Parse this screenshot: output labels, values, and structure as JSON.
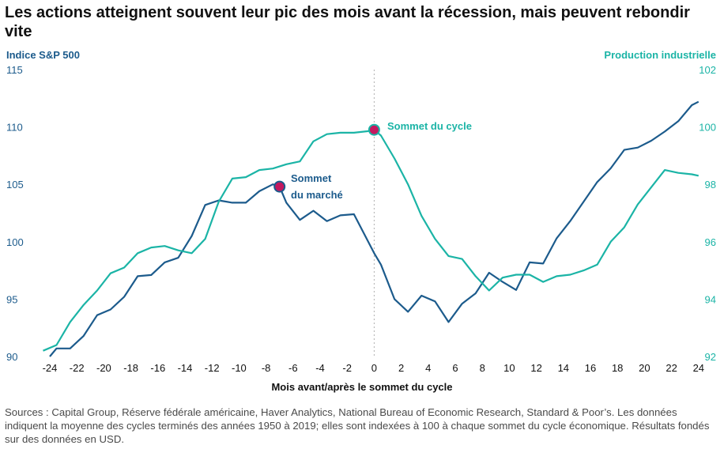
{
  "title": "Les actions atteignent souvent leur pic des mois avant la récession, mais peuvent rebondir vite",
  "footnote": "Sources : Capital Group, Réserve fédérale américaine, Haver Analytics, National Bureau of Economic Research, Standard & Poor’s. Les données indiquent la moyenne des cycles terminés des années 1950 à 2019; elles sont indexées à 100 à chaque sommet du cycle économique. Résultats fondés sur des données en USD.",
  "chart_data": {
    "type": "line",
    "xlabel": "Mois avant/après le sommet du cycle",
    "ylabel_left": "Indice S&P 500",
    "ylabel_right": "Production industrielle",
    "xlim": [
      -24,
      24
    ],
    "ylim_left": [
      90,
      115
    ],
    "ylim_right": [
      92,
      102
    ],
    "x_ticks": [
      -24,
      -22,
      -20,
      -18,
      -16,
      -14,
      -12,
      -10,
      -8,
      -6,
      -4,
      -2,
      0,
      2,
      4,
      6,
      8,
      10,
      12,
      14,
      16,
      18,
      20,
      22,
      24
    ],
    "y_ticks_left": [
      90,
      95,
      100,
      105,
      110,
      115
    ],
    "y_ticks_right": [
      92,
      94,
      96,
      98,
      100,
      102
    ],
    "colors": {
      "sp500": "#1c5b8c",
      "production": "#1bb4a6",
      "marker": "#c4195f",
      "vline": "#b0b0b0"
    },
    "series": [
      {
        "name": "Indice S&P 500",
        "axis": "left",
        "x": [
          -24,
          -23.5,
          -22.5,
          -21.5,
          -20.5,
          -19.5,
          -18.5,
          -17.5,
          -16.5,
          -15.5,
          -14.5,
          -13.5,
          -12.5,
          -11.5,
          -10.5,
          -9.5,
          -8.5,
          -7.5,
          -7,
          -6.5,
          -5.5,
          -4.5,
          -3.5,
          -2.5,
          -1.5,
          0,
          0.5,
          1.5,
          2.5,
          3.5,
          4.5,
          5.5,
          6.5,
          7.5,
          8.5,
          9.5,
          10.5,
          11.5,
          12.5,
          13.5,
          14.5,
          15.5,
          16.5,
          17.5,
          18.5,
          19.5,
          20.5,
          21.5,
          22.5,
          23.5,
          24
        ],
        "values": [
          90.0,
          90.7,
          90.7,
          91.8,
          93.6,
          94.1,
          95.2,
          97.0,
          97.1,
          98.2,
          98.6,
          100.5,
          103.2,
          103.6,
          103.4,
          103.4,
          104.4,
          105.0,
          104.8,
          103.4,
          101.9,
          102.7,
          101.8,
          102.3,
          102.4,
          99.0,
          98.0,
          95.0,
          93.9,
          95.3,
          94.8,
          93.0,
          94.6,
          95.5,
          97.3,
          96.5,
          95.8,
          98.2,
          98.1,
          100.3,
          101.8,
          103.5,
          105.2,
          106.4,
          108.0,
          108.2,
          108.8,
          109.6,
          110.5,
          111.9,
          112.2
        ]
      },
      {
        "name": "Production industrielle",
        "axis": "right",
        "x": [
          -24.5,
          -23.5,
          -22.5,
          -21.5,
          -20.5,
          -19.5,
          -18.5,
          -17.5,
          -16.5,
          -15.5,
          -14.5,
          -13.5,
          -12.5,
          -11.5,
          -10.5,
          -9.5,
          -8.5,
          -7.5,
          -6.5,
          -5.5,
          -4.5,
          -3.5,
          -2.5,
          -1.5,
          -0.5,
          0,
          0.5,
          1.5,
          2.5,
          3.5,
          4.5,
          5.5,
          6.5,
          7.5,
          8.5,
          9.5,
          10.5,
          11.5,
          12.5,
          13.5,
          14.5,
          15.5,
          16.5,
          17.5,
          18.5,
          19.5,
          20.5,
          21.5,
          22.5,
          23.5,
          24
        ],
        "values": [
          92.2,
          92.4,
          93.2,
          93.8,
          94.3,
          94.9,
          95.1,
          95.6,
          95.8,
          95.85,
          95.7,
          95.6,
          96.1,
          97.4,
          98.2,
          98.25,
          98.5,
          98.55,
          98.7,
          98.8,
          99.5,
          99.75,
          99.8,
          99.8,
          99.85,
          99.9,
          99.7,
          98.9,
          98.0,
          96.9,
          96.1,
          95.5,
          95.4,
          94.8,
          94.3,
          94.75,
          94.85,
          94.85,
          94.6,
          94.8,
          94.85,
          95.0,
          95.2,
          96.0,
          96.5,
          97.3,
          97.9,
          98.5,
          98.4,
          98.35,
          98.3
        ]
      }
    ],
    "markers": [
      {
        "series": "Indice S&P 500",
        "x": -7,
        "y": 104.8,
        "label": "Sommet du marché"
      },
      {
        "series": "Production industrielle",
        "x": 0,
        "y": 99.9,
        "label": "Sommet du cycle"
      }
    ],
    "annotations": {
      "market_peak": [
        "Sommet",
        "du marché"
      ],
      "cycle_peak": "Sommet du cycle"
    }
  }
}
